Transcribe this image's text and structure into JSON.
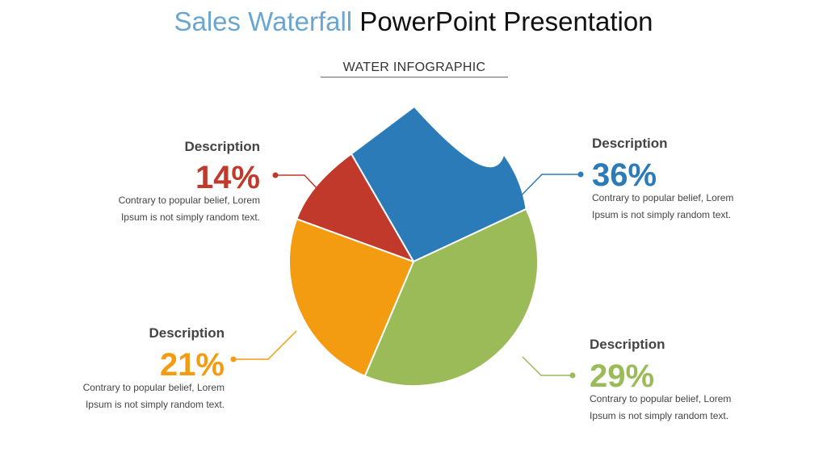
{
  "title": {
    "accent": "Sales Waterfall",
    "rest": " PowerPoint Presentation"
  },
  "subtitle": "WATER INFOGRAPHIC",
  "colors": {
    "red": "#c0392b",
    "blue": "#2b7bb9",
    "green": "#9bbb59",
    "orange": "#f39c12"
  },
  "callouts": {
    "red": {
      "heading": "Description",
      "percent": "14%",
      "line1": "Contrary to popular belief, Lorem",
      "line2": "Ipsum is not simply random text."
    },
    "blue": {
      "heading": "Description",
      "percent": "36%",
      "line1": "Contrary to popular belief, Lorem",
      "line2": "Ipsum is not simply random text."
    },
    "orange": {
      "heading": "Description",
      "percent": "21%",
      "line1": "Contrary to popular belief, Lorem",
      "line2": "Ipsum is not simply random text."
    },
    "green": {
      "heading": "Description",
      "percent": "29%",
      "line1": "Contrary to popular belief, Lorem",
      "line2": "Ipsum is not simply random text."
    }
  },
  "chart_data": {
    "type": "pie",
    "shape": "water-drop",
    "categories": [
      "Description",
      "Description",
      "Description",
      "Description"
    ],
    "values": [
      14,
      36,
      29,
      21
    ],
    "colors": [
      "#c0392b",
      "#2b7bb9",
      "#9bbb59",
      "#f39c12"
    ]
  }
}
